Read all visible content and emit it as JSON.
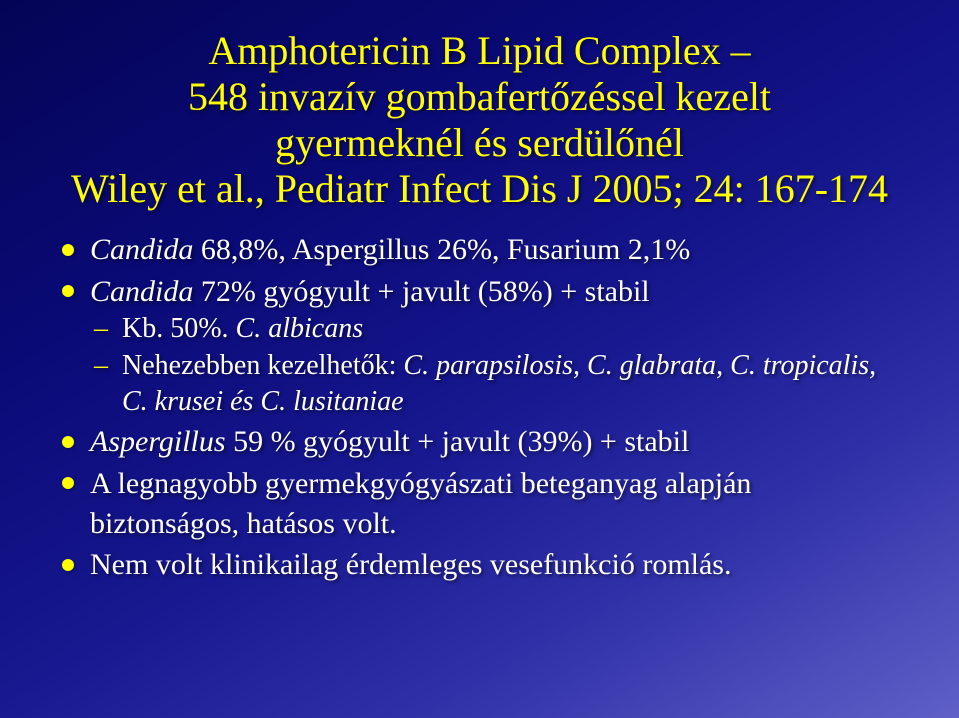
{
  "slide": {
    "title": {
      "line1": "Amphotericin B Lipid Complex –",
      "line2": "548 invazív gombafertőzéssel kezelt",
      "line3": "gyermeknél és serdülőnél",
      "line4": "Wiley et al., Pediatr Infect Dis J 2005; 24: 167-174"
    },
    "bullets": [
      {
        "prefix": "Candida",
        "text": " 68,8%, Aspergillus 26%, Fusarium 2,1%"
      },
      {
        "prefix": "Candida",
        "text": " 72% gyógyult + javult (58%) + stabil",
        "sub": [
          {
            "plain": "Kb. 50%. ",
            "italic": "C. albicans"
          },
          {
            "plain": "Nehezebben kezelhetők: ",
            "italic": "C. parapsilosis, C. glabrata, C. tropicalis, C. krusei és C. lusitaniae"
          }
        ]
      },
      {
        "prefix": "Aspergillus",
        "text": " 59 % gyógyult + javult (39%) + stabil"
      },
      {
        "text": "A legnagyobb gyermekgyógyászati beteganyag alapján biztonságos, hatásos volt."
      },
      {
        "text": "Nem volt klinikailag érdemleges vesefunkció romlás."
      }
    ],
    "styles": {
      "title_color": "#ffff00",
      "title_fontsize": 40,
      "body_fontsize": 30,
      "sub_fontsize": 28,
      "bullet_color": "#ffff00",
      "text_color": "#ffffff",
      "bg_gradient_start": "#040456",
      "bg_gradient_end": "#6060c8",
      "font_family": "Times New Roman"
    }
  }
}
